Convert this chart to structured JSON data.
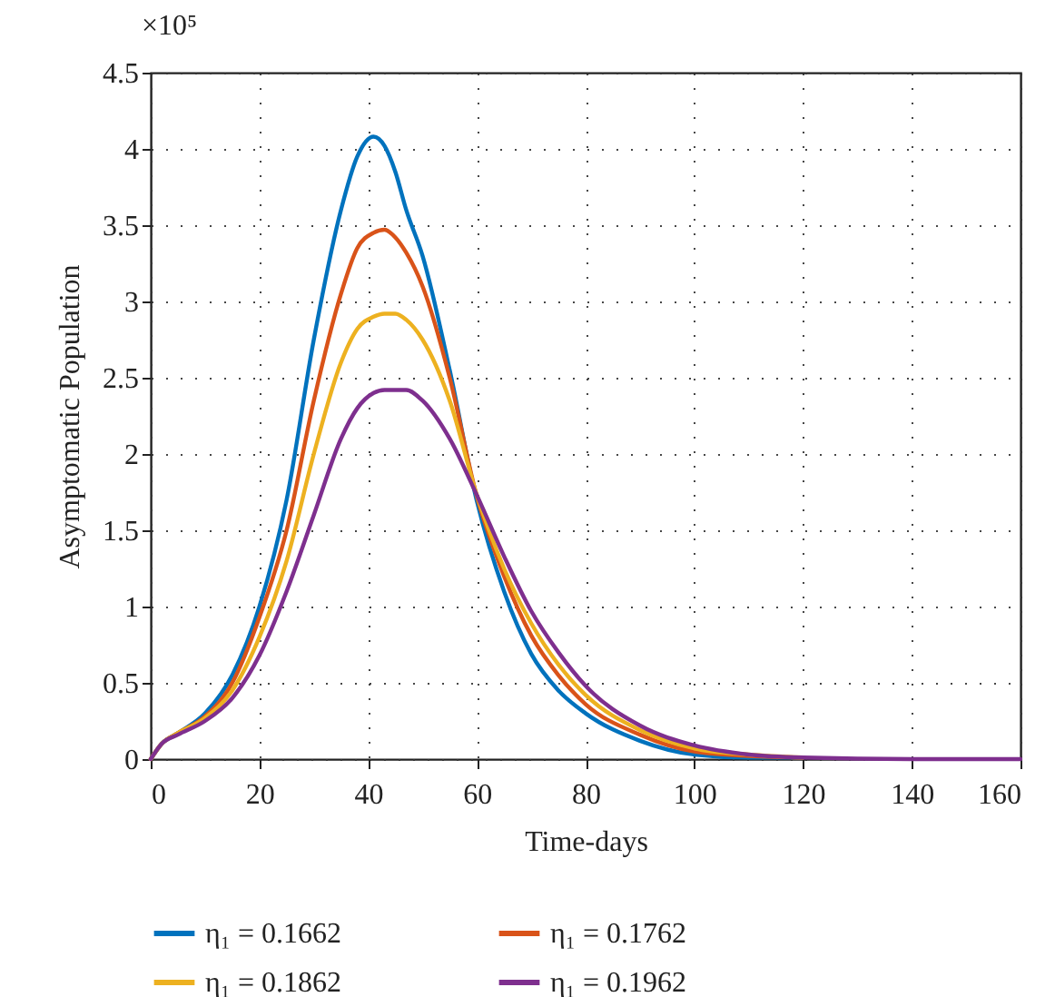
{
  "chart_data": {
    "type": "line",
    "xlabel": "Time-days",
    "ylabel": "Asymptomatic Population",
    "annotations": [
      "×10⁵"
    ],
    "x": [
      0,
      2,
      5,
      10,
      15,
      20,
      25,
      30,
      35,
      38,
      41,
      43,
      45,
      47,
      50,
      55,
      60,
      65,
      70,
      75,
      80,
      90,
      100,
      110,
      120,
      140,
      160
    ],
    "series": [
      {
        "name": "η₁ = 0.1662",
        "color": "#0072bd",
        "values": [
          0,
          0.1,
          0.17,
          0.3,
          0.55,
          1.0,
          1.7,
          2.75,
          3.6,
          3.95,
          4.08,
          4.02,
          3.85,
          3.6,
          3.3,
          2.55,
          1.69,
          1.1,
          0.69,
          0.45,
          0.3,
          0.12,
          0.03,
          0.01,
          0.01,
          null,
          null
        ]
      },
      {
        "name": "η₁ = 0.1762",
        "color": "#d95319",
        "values": [
          0,
          0.1,
          0.17,
          0.28,
          0.5,
          0.93,
          1.5,
          2.35,
          3.05,
          3.35,
          3.45,
          3.47,
          3.42,
          3.32,
          3.1,
          2.5,
          1.72,
          1.2,
          0.81,
          0.55,
          0.36,
          0.16,
          0.05,
          0.02,
          0.01,
          null,
          null
        ]
      },
      {
        "name": "η₁ = 0.1862",
        "color": "#edb120",
        "values": [
          0,
          0.1,
          0.17,
          0.27,
          0.45,
          0.8,
          1.3,
          2.0,
          2.6,
          2.82,
          2.9,
          2.92,
          2.92,
          2.88,
          2.75,
          2.35,
          1.73,
          1.25,
          0.89,
          0.62,
          0.42,
          0.19,
          0.07,
          0.03,
          0.01,
          null,
          null
        ]
      },
      {
        "name": "η₁ = 0.1962",
        "color": "#7e2f8e",
        "values": [
          0,
          0.1,
          0.16,
          0.25,
          0.4,
          0.68,
          1.1,
          1.6,
          2.1,
          2.3,
          2.4,
          2.42,
          2.42,
          2.42,
          2.35,
          2.1,
          1.73,
          1.33,
          0.97,
          0.7,
          0.48,
          0.22,
          0.09,
          0.03,
          0.01,
          0,
          0
        ]
      }
    ],
    "xlim": [
      0,
      160
    ],
    "xticks": [
      0,
      20,
      40,
      60,
      80,
      100,
      120,
      140,
      160
    ],
    "ylim": [
      0,
      4.5
    ],
    "yticks": [
      0,
      0.5,
      1,
      1.5,
      2,
      2.5,
      3,
      3.5,
      4,
      4.5
    ],
    "grid": true,
    "legend": "bottom",
    "line_style": "solid",
    "marker": "none"
  }
}
